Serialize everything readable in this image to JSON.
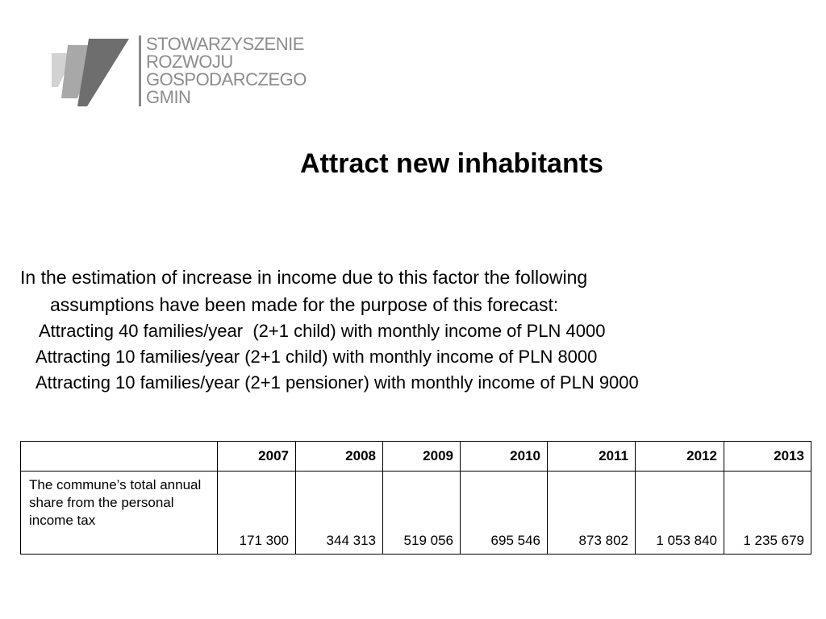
{
  "logo": {
    "lines": [
      "STOWARZYSZENIE",
      "ROZWOJU",
      "GOSPODARCZEGO",
      "GMIN"
    ]
  },
  "title": "Attract new inhabitants",
  "intro": {
    "line1": "In the estimation of increase in income due to this factor the following",
    "line2": "assumptions have been made for the purpose of this forecast:"
  },
  "assumptions": [
    "Attracting 40 families/year  (2+1 child) with monthly income of PLN 4000",
    "Attracting 10 families/year (2+1 child) with monthly income of PLN 8000",
    "Attracting 10 families/year (2+1 pensioner) with monthly income of PLN 9000"
  ],
  "table": {
    "headers": [
      "",
      "2007",
      "2008",
      "2009",
      "2010",
      "2011",
      "2012",
      "2013"
    ],
    "row": {
      "label": "The commune’s total annual share from the personal income tax",
      "values": [
        "171 300",
        "344 313",
        "519 056",
        "695 546",
        "873 802",
        "1 053 840",
        "1 235 679"
      ]
    }
  },
  "colors": {
    "logo_gray": "#8c8c8c",
    "logo_light": "#cfcfcf",
    "logo_mid": "#a8a8a8",
    "logo_dark": "#6e6e6e"
  }
}
